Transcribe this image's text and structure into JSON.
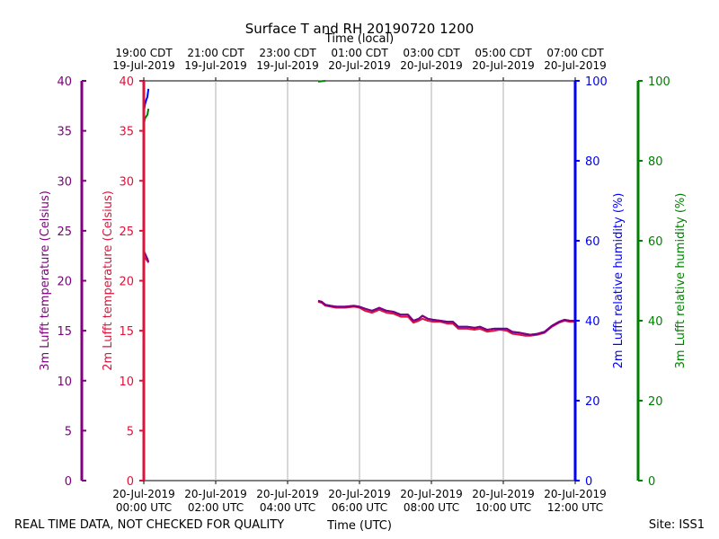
{
  "chart_data": {
    "type": "line",
    "title": "Surface T and RH 20190720 1200",
    "xlabel_top": "Time (local)",
    "xlabel_bottom": "Time (UTC)",
    "footer_left": "REAL TIME DATA, NOT CHECKED FOR QUALITY",
    "footer_right": "Site: ISS1",
    "x_range_hours": [
      0,
      12
    ],
    "grid": true,
    "bottom_ticks": [
      {
        "h": 0,
        "line1": "20-Jul-2019",
        "line2": "00:00 UTC"
      },
      {
        "h": 2,
        "line1": "20-Jul-2019",
        "line2": "02:00 UTC"
      },
      {
        "h": 4,
        "line1": "20-Jul-2019",
        "line2": "04:00 UTC"
      },
      {
        "h": 6,
        "line1": "20-Jul-2019",
        "line2": "06:00 UTC"
      },
      {
        "h": 8,
        "line1": "20-Jul-2019",
        "line2": "08:00 UTC"
      },
      {
        "h": 10,
        "line1": "20-Jul-2019",
        "line2": "10:00 UTC"
      },
      {
        "h": 12,
        "line1": "20-Jul-2019",
        "line2": "12:00 UTC"
      }
    ],
    "top_ticks": [
      {
        "h": 0,
        "line1": "19:00 CDT",
        "line2": "19-Jul-2019"
      },
      {
        "h": 2,
        "line1": "21:00 CDT",
        "line2": "19-Jul-2019"
      },
      {
        "h": 4,
        "line1": "23:00 CDT",
        "line2": "19-Jul-2019"
      },
      {
        "h": 6,
        "line1": "01:00 CDT",
        "line2": "20-Jul-2019"
      },
      {
        "h": 8,
        "line1": "03:00 CDT",
        "line2": "20-Jul-2019"
      },
      {
        "h": 10,
        "line1": "05:00 CDT",
        "line2": "20-Jul-2019"
      },
      {
        "h": 12,
        "line1": "07:00 CDT",
        "line2": "20-Jul-2019"
      }
    ],
    "axes": [
      {
        "id": "t3m",
        "label": "3m Lufft temperature (Celsius)",
        "color": "#800080",
        "range": [
          0,
          40
        ],
        "ticks": [
          0,
          5,
          10,
          15,
          20,
          25,
          30,
          35,
          40
        ]
      },
      {
        "id": "t2m",
        "label": "2m Lufft temperature (Celsius)",
        "color": "#dc143c",
        "range": [
          0,
          40
        ],
        "ticks": [
          0,
          5,
          10,
          15,
          20,
          25,
          30,
          35,
          40
        ]
      },
      {
        "id": "rh2m",
        "label": "2m Lufft relative humidity (%)",
        "color": "#0000ff",
        "range": [
          0,
          100
        ],
        "ticks": [
          0,
          20,
          40,
          60,
          80,
          100
        ]
      },
      {
        "id": "rh3m",
        "label": "3m Lufft relative humidity (%)",
        "color": "#008000",
        "range": [
          0,
          100
        ],
        "ticks": [
          0,
          20,
          40,
          60,
          80,
          100
        ]
      }
    ],
    "series": [
      {
        "name": "3m Lufft temperature",
        "axis": "t3m",
        "segments": [
          [
            [
              0.0,
              23.0
            ],
            [
              0.05,
              22.6
            ],
            [
              0.1,
              22.2
            ],
            [
              0.13,
              21.9
            ]
          ],
          [
            [
              4.85,
              18.0
            ],
            [
              4.95,
              17.9
            ],
            [
              5.05,
              17.6
            ],
            [
              5.2,
              17.5
            ],
            [
              5.35,
              17.4
            ],
            [
              5.6,
              17.4
            ],
            [
              5.85,
              17.5
            ],
            [
              6.0,
              17.4
            ],
            [
              6.15,
              17.2
            ],
            [
              6.35,
              17.0
            ],
            [
              6.55,
              17.3
            ],
            [
              6.75,
              17.0
            ],
            [
              6.95,
              16.9
            ],
            [
              7.15,
              16.6
            ],
            [
              7.35,
              16.6
            ],
            [
              7.5,
              16.0
            ],
            [
              7.65,
              16.2
            ],
            [
              7.75,
              16.5
            ],
            [
              7.9,
              16.2
            ],
            [
              8.05,
              16.1
            ],
            [
              8.25,
              16.0
            ],
            [
              8.45,
              15.9
            ],
            [
              8.6,
              15.9
            ],
            [
              8.75,
              15.4
            ],
            [
              9.0,
              15.4
            ],
            [
              9.2,
              15.3
            ],
            [
              9.35,
              15.4
            ],
            [
              9.55,
              15.1
            ],
            [
              9.75,
              15.2
            ],
            [
              9.9,
              15.2
            ],
            [
              10.1,
              15.2
            ],
            [
              10.25,
              14.9
            ],
            [
              10.45,
              14.8
            ],
            [
              10.6,
              14.7
            ],
            [
              10.75,
              14.6
            ],
            [
              10.95,
              14.7
            ],
            [
              11.15,
              14.9
            ],
            [
              11.35,
              15.5
            ],
            [
              11.55,
              15.9
            ],
            [
              11.7,
              16.1
            ],
            [
              11.85,
              16.0
            ],
            [
              12.0,
              16.0
            ]
          ]
        ]
      },
      {
        "name": "2m Lufft temperature",
        "axis": "t2m",
        "segments": [
          [
            [
              0.0,
              22.5
            ],
            [
              0.05,
              22.2
            ],
            [
              0.1,
              22.0
            ],
            [
              0.13,
              21.8
            ]
          ],
          [
            [
              4.85,
              17.9
            ],
            [
              4.95,
              17.8
            ],
            [
              5.05,
              17.5
            ],
            [
              5.2,
              17.4
            ],
            [
              5.35,
              17.3
            ],
            [
              5.6,
              17.3
            ],
            [
              5.85,
              17.4
            ],
            [
              6.0,
              17.3
            ],
            [
              6.15,
              17.0
            ],
            [
              6.35,
              16.8
            ],
            [
              6.55,
              17.1
            ],
            [
              6.75,
              16.8
            ],
            [
              6.95,
              16.7
            ],
            [
              7.15,
              16.4
            ],
            [
              7.35,
              16.4
            ],
            [
              7.5,
              15.8
            ],
            [
              7.65,
              16.0
            ],
            [
              7.75,
              16.2
            ],
            [
              7.9,
              16.0
            ],
            [
              8.05,
              15.9
            ],
            [
              8.25,
              15.9
            ],
            [
              8.45,
              15.7
            ],
            [
              8.6,
              15.7
            ],
            [
              8.75,
              15.2
            ],
            [
              9.0,
              15.2
            ],
            [
              9.2,
              15.1
            ],
            [
              9.35,
              15.2
            ],
            [
              9.55,
              14.9
            ],
            [
              9.75,
              15.0
            ],
            [
              9.9,
              15.1
            ],
            [
              10.1,
              15.0
            ],
            [
              10.25,
              14.7
            ],
            [
              10.45,
              14.6
            ],
            [
              10.6,
              14.5
            ],
            [
              10.75,
              14.5
            ],
            [
              10.95,
              14.6
            ],
            [
              11.15,
              14.8
            ],
            [
              11.35,
              15.4
            ],
            [
              11.55,
              15.8
            ],
            [
              11.7,
              16.0
            ],
            [
              11.85,
              15.9
            ],
            [
              12.0,
              15.9
            ]
          ]
        ]
      },
      {
        "name": "2m Lufft relative humidity",
        "axis": "rh2m",
        "segments": [
          [
            [
              0.0,
              92.0
            ],
            [
              0.03,
              94.0
            ],
            [
              0.06,
              95.0
            ],
            [
              0.1,
              96.0
            ],
            [
              0.13,
              98.0
            ]
          ],
          [
            [
              4.85,
              45.0
            ],
            [
              4.95,
              44.7
            ],
            [
              5.05,
              44.0
            ],
            [
              5.2,
              43.7
            ],
            [
              5.35,
              43.5
            ],
            [
              5.6,
              43.5
            ],
            [
              5.85,
              43.7
            ],
            [
              6.0,
              43.5
            ],
            [
              6.15,
              43.0
            ],
            [
              6.35,
              42.5
            ],
            [
              6.55,
              43.2
            ],
            [
              6.75,
              42.5
            ],
            [
              6.95,
              42.2
            ],
            [
              7.15,
              41.5
            ],
            [
              7.35,
              41.5
            ],
            [
              7.5,
              40.0
            ],
            [
              7.65,
              40.5
            ],
            [
              7.75,
              41.2
            ],
            [
              7.9,
              40.5
            ],
            [
              8.05,
              40.2
            ],
            [
              8.25,
              40.0
            ],
            [
              8.45,
              39.7
            ],
            [
              8.6,
              39.7
            ],
            [
              8.75,
              38.5
            ],
            [
              9.0,
              38.5
            ],
            [
              9.2,
              38.2
            ],
            [
              9.35,
              38.5
            ],
            [
              9.55,
              37.7
            ],
            [
              9.75,
              38.0
            ],
            [
              9.9,
              38.0
            ],
            [
              10.1,
              38.0
            ],
            [
              10.25,
              37.2
            ],
            [
              10.45,
              37.0
            ],
            [
              10.6,
              36.7
            ],
            [
              10.75,
              36.5
            ],
            [
              10.95,
              36.7
            ],
            [
              11.15,
              37.2
            ],
            [
              11.35,
              38.7
            ],
            [
              11.55,
              39.7
            ],
            [
              11.7,
              40.2
            ],
            [
              11.85,
              40.0
            ],
            [
              12.0,
              40.0
            ]
          ]
        ]
      },
      {
        "name": "3m Lufft relative humidity",
        "axis": "rh3m",
        "segments": [
          [
            [
              0.0,
              89.0
            ],
            [
              0.03,
              90.5
            ],
            [
              0.06,
              91.0
            ],
            [
              0.1,
              91.5
            ],
            [
              0.13,
              93.0
            ]
          ],
          [
            [
              4.85,
              99.8
            ],
            [
              4.95,
              99.9
            ],
            [
              5.05,
              100.0
            ]
          ]
        ]
      }
    ]
  }
}
